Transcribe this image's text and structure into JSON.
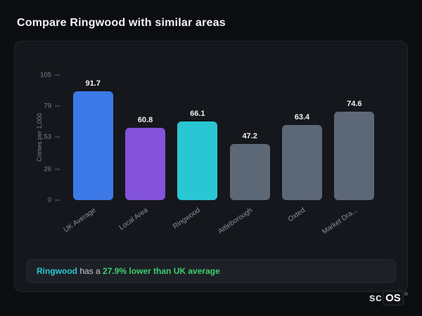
{
  "page_title": "Compare Ringwood with similar areas",
  "chart_data": {
    "type": "bar",
    "title": "Compare Ringwood with similar areas",
    "categories": [
      "UK Average",
      "Local Area",
      "Ringwood",
      "Attleborough",
      "Oxted",
      "Market Dra..."
    ],
    "values": [
      91.7,
      60.8,
      66.1,
      47.2,
      63.4,
      74.6
    ],
    "value_labels": [
      "91.7",
      "60.8",
      "66.1",
      "47.2",
      "63.4",
      "74.6"
    ],
    "bar_colors": [
      "#3c79e6",
      "#8353d9",
      "#29c7d4",
      "#5d6877",
      "#5d6877",
      "#5d6877"
    ],
    "xlabel": "",
    "ylabel": "Crimes per 1,000",
    "yticks": [
      0,
      26,
      53,
      79,
      105
    ],
    "ylim": [
      0,
      105
    ],
    "grid": false,
    "legend": "none"
  },
  "note": {
    "subject": "Ringwood",
    "middle": " has a ",
    "highlight": "27.9% lower than UK average",
    "subject_color": "#29c7d4",
    "highlight_color": "#3ecf6f"
  },
  "logo": {
    "prefix": "sc",
    "suffix": "OS",
    "registered": "®"
  },
  "colors": {
    "page_background": "#0b0d11",
    "card_background": "#15171c",
    "note_background": "#1d2127",
    "axis_text": "#7d8491"
  }
}
